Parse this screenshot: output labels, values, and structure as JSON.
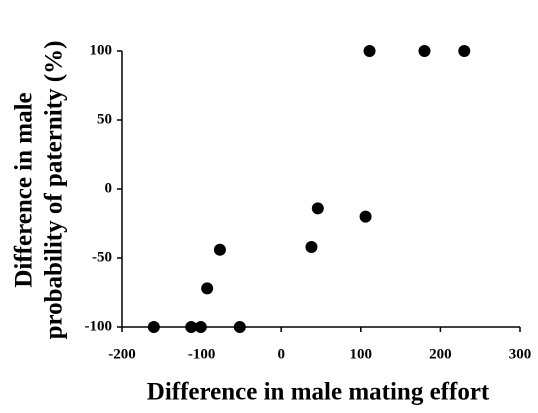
{
  "chart_data": {
    "type": "scatter",
    "x_label": "Difference in male mating effort",
    "y_label": [
      "Difference in male",
      "probability of paternity (%)"
    ],
    "x": [
      -160,
      -113,
      -101,
      -52,
      -93,
      -77,
      38,
      46,
      106,
      111,
      180,
      230
    ],
    "values": [
      -100,
      -100,
      -100,
      -100,
      -72,
      -44,
      -42,
      -14,
      -20,
      100,
      100,
      100
    ],
    "color": "#000000",
    "xlim": [
      -200,
      300
    ],
    "xticks": [
      -200,
      -100,
      0,
      100,
      200,
      300
    ],
    "ylim": [
      -100,
      100
    ],
    "yticks": [
      -100,
      -50,
      0,
      50,
      100
    ],
    "grid": false
  }
}
